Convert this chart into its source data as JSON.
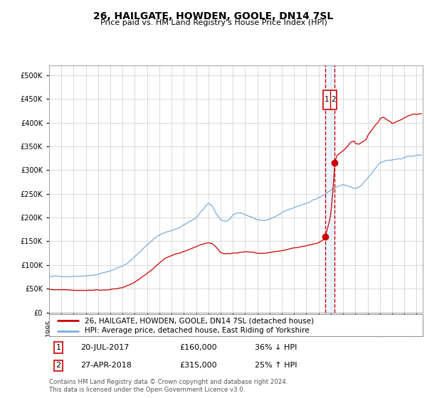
{
  "title": "26, HAILGATE, HOWDEN, GOOLE, DN14 7SL",
  "subtitle": "Price paid vs. HM Land Registry's House Price Index (HPI)",
  "legend_line1": "26, HAILGATE, HOWDEN, GOOLE, DN14 7SL (detached house)",
  "legend_line2": "HPI: Average price, detached house, East Riding of Yorkshire",
  "annotation1_date": "20-JUL-2017",
  "annotation1_price": "£160,000",
  "annotation1_hpi": "36% ↓ HPI",
  "annotation2_date": "27-APR-2018",
  "annotation2_price": "£315,000",
  "annotation2_hpi": "25% ↑ HPI",
  "marker1_date_num": 2017.54,
  "marker1_value": 160000,
  "marker2_date_num": 2018.32,
  "marker2_value": 315000,
  "vline1_date_num": 2017.54,
  "vline2_date_num": 2018.32,
  "footer": "Contains HM Land Registry data © Crown copyright and database right 2024.\nThis data is licensed under the Open Government Licence v3.0.",
  "hpi_color": "#7aaddc",
  "price_color": "#cc0000",
  "vline_color": "#cc0000",
  "vline_bg_color": "#ddeeff",
  "grid_color": "#cccccc",
  "background_color": "#ffffff",
  "ylim_max": 520000,
  "xlim_start": 1995.0,
  "xlim_end": 2025.5,
  "title_fontsize": 10,
  "subtitle_fontsize": 8,
  "tick_fontsize": 7,
  "legend_fontsize": 7.5,
  "ann_fontsize": 8
}
